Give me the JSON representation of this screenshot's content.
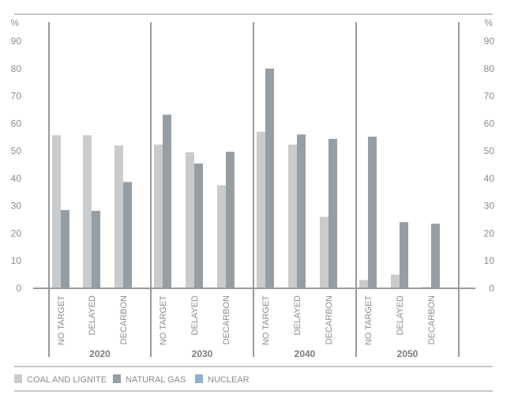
{
  "chart_data": {
    "type": "bar",
    "y_unit": "%",
    "ylim": [
      0,
      90
    ],
    "yticks": [
      0,
      10,
      20,
      30,
      40,
      50,
      60,
      70,
      80,
      90
    ],
    "grid": false,
    "legend_position": "bottom",
    "groups": [
      {
        "label": "2020",
        "categories": [
          "NO TARGET",
          "DELAYED",
          "DECARBON"
        ]
      },
      {
        "label": "2030",
        "categories": [
          "NO TARGET",
          "DELAYED",
          "DECARBON"
        ]
      },
      {
        "label": "2040",
        "categories": [
          "NO TARGET",
          "DELAYED",
          "DECARBON"
        ]
      },
      {
        "label": "2050",
        "categories": [
          "NO TARGET",
          "DELAYED",
          "DECARBON"
        ]
      }
    ],
    "series": [
      {
        "name": "COAL AND LIGNITE",
        "color": "#c9cbcd",
        "values": [
          55.7,
          55.7,
          52.0,
          52.3,
          49.5,
          37.5,
          57.0,
          52.3,
          26.0,
          3.0,
          5.0,
          0.5
        ]
      },
      {
        "name": "NATURAL GAS",
        "color": "#969ea3",
        "values": [
          28.5,
          28.2,
          38.7,
          63.2,
          45.4,
          49.7,
          80.0,
          56.0,
          54.4,
          55.2,
          24.1,
          23.5
        ]
      },
      {
        "name": "NUCLEAR",
        "color": "#8fb0cc",
        "values": [
          0,
          0,
          0,
          0,
          0,
          0,
          0,
          0,
          0,
          0,
          0,
          0
        ]
      }
    ]
  }
}
